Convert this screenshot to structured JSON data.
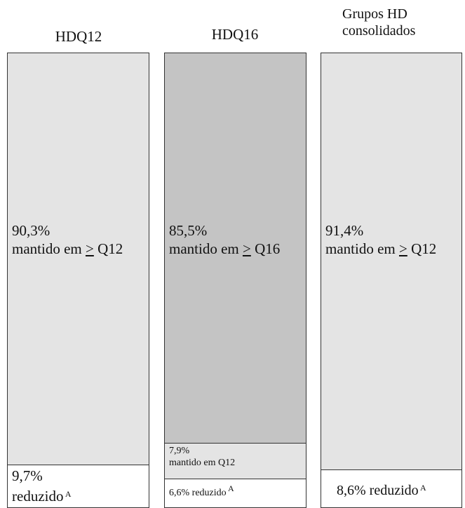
{
  "chart_data": {
    "type": "stacked-bar",
    "columns": [
      {
        "header": "HDQ12",
        "segments": [
          {
            "percent": 90.3,
            "label": "90,3%",
            "line2_pre": "mantido em ",
            "line2_sym": ">",
            "line2_post": " Q12",
            "color": "#e4e4e4"
          },
          {
            "percent": 9.7,
            "label": "9,7%",
            "line2_pre": "reduzido",
            "line2_sym": "",
            "line2_post": "",
            "sup": "A",
            "color": "#ffffff"
          }
        ]
      },
      {
        "header": "HDQ16",
        "segments": [
          {
            "percent": 85.5,
            "label": "85,5%",
            "line2_pre": "mantido em ",
            "line2_sym": ">",
            "line2_post": " Q16",
            "color": "#c4c4c4"
          },
          {
            "percent": 7.9,
            "label": "7,9%",
            "line2_pre": "mantido em Q12",
            "line2_sym": "",
            "line2_post": "",
            "color": "#e4e4e4"
          },
          {
            "percent": 6.6,
            "label": "6,6%  reduzido",
            "line2_pre": "",
            "line2_sym": "",
            "line2_post": "",
            "sup": "A",
            "color": "#ffffff"
          }
        ]
      },
      {
        "header_lines": [
          "Grupos HD",
          "consolidados"
        ],
        "segments": [
          {
            "percent": 91.4,
            "label": "91,4%",
            "line2_pre": "mantido em ",
            "line2_sym": ">",
            "line2_post": "  Q12",
            "color": "#e4e4e4"
          },
          {
            "percent": 8.6,
            "label": "8,6% reduzido",
            "line2_pre": "",
            "line2_sym": "",
            "line2_post": "",
            "sup": "A",
            "color": "#ffffff"
          }
        ]
      }
    ]
  }
}
